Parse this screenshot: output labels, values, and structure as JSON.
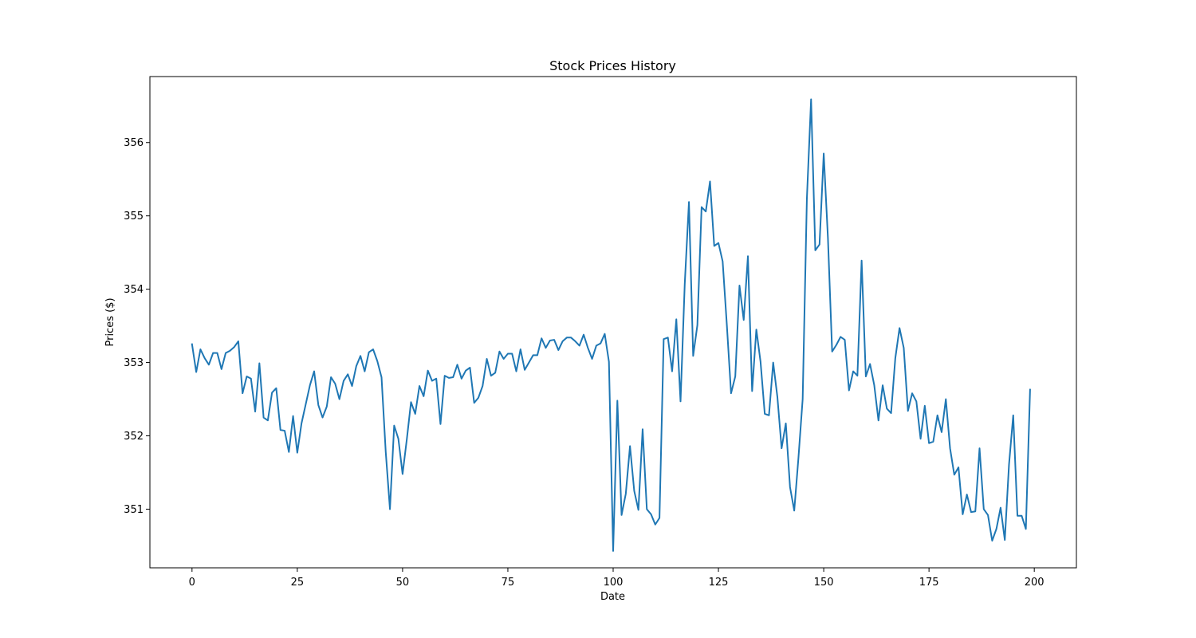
{
  "chart_data": {
    "type": "line",
    "title": "Stock Prices History",
    "xlabel": "Date",
    "ylabel": "Prices ($)",
    "xlim": [
      -10,
      210
    ],
    "ylim": [
      350.2,
      356.9
    ],
    "xticks": [
      0,
      25,
      50,
      75,
      100,
      125,
      150,
      175,
      200
    ],
    "yticks": [
      351,
      352,
      353,
      354,
      355,
      356
    ],
    "grid": false,
    "legend": "none",
    "series": [
      {
        "color": "#1f77b4",
        "x_start": 0,
        "x_step": 1,
        "values": [
          353.25,
          352.87,
          353.18,
          353.06,
          352.97,
          353.13,
          353.13,
          352.91,
          353.13,
          353.16,
          353.21,
          353.29,
          352.58,
          352.81,
          352.78,
          352.33,
          352.99,
          352.25,
          352.21,
          352.59,
          352.65,
          352.08,
          352.07,
          351.78,
          352.27,
          351.77,
          352.17,
          352.43,
          352.69,
          352.88,
          352.42,
          352.25,
          352.4,
          352.8,
          352.71,
          352.5,
          352.75,
          352.84,
          352.68,
          352.95,
          353.09,
          352.88,
          353.14,
          353.18,
          353.02,
          352.8,
          351.78,
          351.0,
          352.14,
          351.96,
          351.48,
          351.95,
          352.46,
          352.3,
          352.68,
          352.54,
          352.89,
          352.75,
          352.78,
          352.16,
          352.82,
          352.79,
          352.8,
          352.97,
          352.78,
          352.89,
          352.93,
          352.45,
          352.52,
          352.68,
          353.05,
          352.82,
          352.86,
          353.15,
          353.05,
          353.12,
          353.12,
          352.88,
          353.18,
          352.9,
          353.0,
          353.1,
          353.1,
          353.33,
          353.2,
          353.3,
          353.31,
          353.17,
          353.29,
          353.34,
          353.34,
          353.29,
          353.23,
          353.38,
          353.2,
          353.05,
          353.23,
          353.26,
          353.39,
          353.01,
          350.43,
          352.48,
          350.92,
          351.21,
          351.86,
          351.25,
          350.99,
          352.09,
          351.0,
          350.93,
          350.79,
          350.88,
          353.32,
          353.34,
          352.88,
          353.59,
          352.47,
          354.07,
          355.19,
          353.09,
          353.51,
          355.12,
          355.06,
          355.47,
          354.59,
          354.63,
          354.38,
          353.51,
          352.58,
          352.81,
          354.05,
          353.58,
          354.45,
          352.61,
          353.45,
          353.01,
          352.3,
          352.28,
          353.0,
          352.53,
          351.83,
          352.17,
          351.3,
          350.98,
          351.7,
          352.5,
          355.23,
          356.59,
          354.53,
          354.61,
          355.85,
          354.7,
          353.15,
          353.24,
          353.35,
          353.31,
          352.62,
          352.88,
          352.82,
          354.39,
          352.81,
          352.98,
          352.69,
          352.21,
          352.69,
          352.37,
          352.31,
          353.06,
          353.47,
          353.2,
          352.34,
          352.58,
          352.47,
          351.96,
          352.41,
          351.9,
          351.92,
          352.28,
          352.05,
          352.5,
          351.83,
          351.47,
          351.57,
          350.93,
          351.2,
          350.96,
          350.97,
          351.83,
          351.0,
          350.92,
          350.57,
          350.73,
          351.02,
          350.58,
          351.61,
          352.28,
          350.91,
          350.91,
          350.73,
          352.63
        ]
      }
    ]
  }
}
